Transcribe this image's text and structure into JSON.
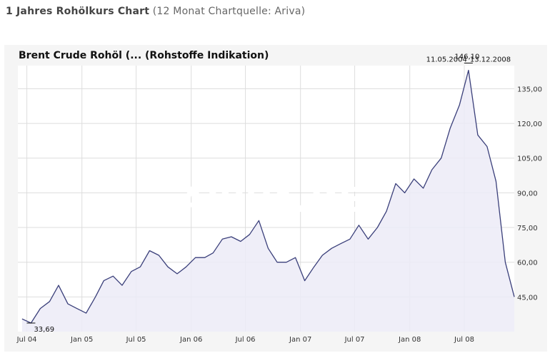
{
  "header": {
    "title_bold": "1 Jahres Rohölkurs Chart",
    "title_light": "(12 Monat Chartquelle: Ariva)"
  },
  "watermark": "ARIVA.DE",
  "chart_data": {
    "type": "area",
    "title": "Brent Crude Rohöl (... (Rohstoffe Indikation)",
    "x_ticks": [
      "Jul 04",
      "Jan 05",
      "Jul 05",
      "Jan 06",
      "Jul 06",
      "Jan 07",
      "Jul 07",
      "Jan 08",
      "Jul 08"
    ],
    "y_ticks": [
      "45,00",
      "60,00",
      "75,00",
      "90,00",
      "105,00",
      "120,00",
      "135,00"
    ],
    "y_tick_values": [
      45,
      60,
      75,
      90,
      105,
      120,
      135
    ],
    "ylim": [
      30,
      145
    ],
    "grid": true,
    "colors": {
      "line": "#3a3f7a",
      "fill": "#ecebf7",
      "plot_bg": "#ffffff",
      "grid": "#dddddd"
    },
    "annotations": {
      "low_value": "33,69",
      "high_value": "146,10",
      "high_date_left": "11.05.2004",
      "high_date_right": "13.12.2008"
    },
    "series": [
      {
        "x": [
          "2004-06",
          "2004-07",
          "2004-08",
          "2004-09",
          "2004-10",
          "2004-11",
          "2004-12",
          "2005-01",
          "2005-02",
          "2005-03",
          "2005-04",
          "2005-05",
          "2005-06",
          "2005-07",
          "2005-08",
          "2005-09",
          "2005-10",
          "2005-11",
          "2005-12",
          "2006-01",
          "2006-02",
          "2006-03",
          "2006-04",
          "2006-05",
          "2006-06",
          "2006-07",
          "2006-08",
          "2006-09",
          "2006-10",
          "2006-11",
          "2006-12",
          "2007-01",
          "2007-02",
          "2007-03",
          "2007-04",
          "2007-05",
          "2007-06",
          "2007-07",
          "2007-08",
          "2007-09",
          "2007-10",
          "2007-11",
          "2007-12",
          "2008-01",
          "2008-02",
          "2008-03",
          "2008-04",
          "2008-05",
          "2008-06",
          "2008-07",
          "2008-08",
          "2008-09",
          "2008-10",
          "2008-11",
          "2008-12"
        ],
        "values": [
          35.5,
          33.7,
          40,
          43,
          50,
          42,
          40,
          38,
          45,
          52,
          54,
          50,
          56,
          58,
          65,
          63,
          58,
          55,
          58,
          62,
          62,
          64,
          70,
          71,
          69,
          72,
          78,
          66,
          60,
          60,
          62,
          52,
          58,
          63,
          66,
          68,
          70,
          76,
          70,
          75,
          82,
          94,
          90,
          96,
          92,
          100,
          105,
          118,
          128,
          143,
          115,
          110,
          95,
          60,
          45
        ]
      }
    ]
  }
}
